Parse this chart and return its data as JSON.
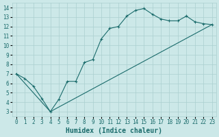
{
  "xlabel": "Humidex (Indice chaleur)",
  "bg_color": "#cce8e8",
  "line_color": "#1a6b6b",
  "grid_color": "#aacfcf",
  "xlim": [
    -0.5,
    23.5
  ],
  "ylim": [
    2.5,
    14.5
  ],
  "xticks": [
    0,
    1,
    2,
    3,
    4,
    5,
    6,
    7,
    8,
    9,
    10,
    11,
    12,
    13,
    14,
    15,
    16,
    17,
    18,
    19,
    20,
    21,
    22,
    23
  ],
  "yticks": [
    3,
    4,
    5,
    6,
    7,
    8,
    9,
    10,
    11,
    12,
    13,
    14
  ],
  "line1_x": [
    0,
    1,
    2,
    3,
    4,
    5,
    6,
    7,
    8,
    9,
    10,
    11,
    12,
    13,
    14,
    15,
    16,
    17,
    18,
    19,
    20,
    21,
    22,
    23
  ],
  "line1_y": [
    7.0,
    6.5,
    5.7,
    4.4,
    3.0,
    4.3,
    6.2,
    6.2,
    8.2,
    8.5,
    10.7,
    11.8,
    12.0,
    13.1,
    13.7,
    13.9,
    13.3,
    12.8,
    12.6,
    12.6,
    13.1,
    12.5,
    12.3,
    12.2
  ],
  "line2_x": [
    0,
    4,
    23
  ],
  "line2_y": [
    7.0,
    3.0,
    12.2
  ],
  "xlabel_fontsize": 7,
  "tick_fontsize": 5.5
}
